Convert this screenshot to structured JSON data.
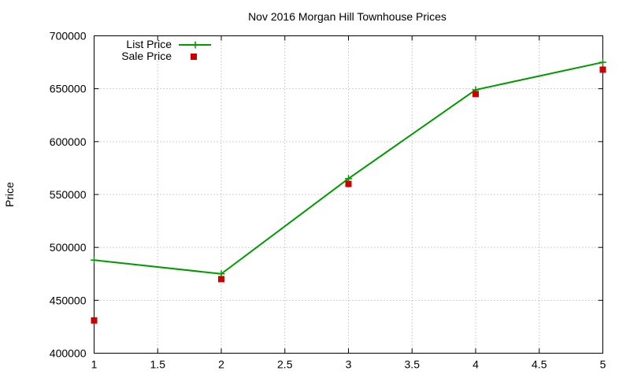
{
  "chart_data": {
    "type": "line",
    "title": "Nov 2016 Morgan Hill Townhouse Prices",
    "xlabel": "",
    "ylabel": "Price",
    "xlim": [
      1,
      5
    ],
    "ylim": [
      400000,
      700000
    ],
    "x_ticks": [
      1,
      1.5,
      2,
      2.5,
      3,
      3.5,
      4,
      4.5,
      5
    ],
    "x_tick_labels": [
      "1",
      "1.5",
      "2",
      "2.5",
      "3",
      "3.5",
      "4",
      "4.5",
      "5"
    ],
    "y_ticks": [
      400000,
      450000,
      500000,
      550000,
      600000,
      650000,
      700000
    ],
    "y_tick_labels": [
      "400000",
      "450000",
      "500000",
      "550000",
      "600000",
      "650000",
      "700000"
    ],
    "grid": true,
    "legend_position": "top-left",
    "series": [
      {
        "name": "List Price",
        "style": "linespoints",
        "marker": "plus",
        "color": "#009900",
        "x": [
          1,
          2,
          3,
          4,
          5
        ],
        "values": [
          488000,
          475000,
          565000,
          649000,
          675000
        ]
      },
      {
        "name": "Sale Price",
        "style": "points",
        "marker": "square",
        "color": "#cc0000",
        "x": [
          1,
          2,
          3,
          4,
          5
        ],
        "values": [
          431000,
          470000,
          560000,
          645000,
          668000
        ]
      }
    ]
  }
}
